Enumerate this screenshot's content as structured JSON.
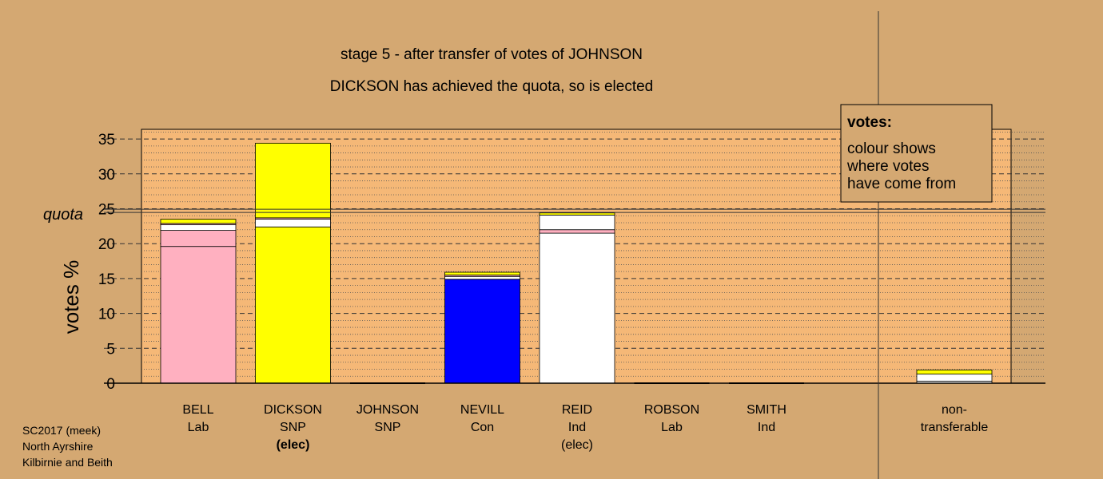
{
  "titles": {
    "line1": "stage 5 - after transfer of votes of JOHNSON",
    "line2": "DICKSON has achieved the quota, so is elected"
  },
  "footer": {
    "line1": "SC2017 (meek)",
    "line2": "North Ayrshire",
    "line3": "Kilbirnie and Beith"
  },
  "legend": {
    "heading": "votes:",
    "line1": "colour shows",
    "line2": "where votes",
    "line3": "have come from"
  },
  "colors": {
    "background": "#d4a872",
    "plot_area": "#f5b877",
    "Lab": "#ffb0c0",
    "SNP": "#ffff00",
    "Con": "#0000ff",
    "Ind": "#ffffff"
  },
  "chart_data": {
    "type": "bar",
    "stacked": true,
    "ylabel": "votes %",
    "ylim": [
      0,
      36
    ],
    "yticks": [
      0,
      5,
      10,
      15,
      20,
      25,
      30,
      35
    ],
    "grid": "dashed major, dotted minor",
    "quota": {
      "label": "quota",
      "value": 24.7
    },
    "candidates": [
      {
        "name": "BELL",
        "party": "Lab",
        "status": "",
        "segments": [
          {
            "source": "Lab",
            "value": 19.6
          },
          {
            "source": "Lab",
            "value": 2.3
          },
          {
            "source": "Ind",
            "value": 0.8
          },
          {
            "source": "Lab",
            "value": 0.2
          },
          {
            "source": "SNP",
            "value": 0.6
          }
        ]
      },
      {
        "name": "DICKSON",
        "party": "SNP",
        "status": "(elec)",
        "segments": [
          {
            "source": "SNP",
            "value": 22.4
          },
          {
            "source": "Ind",
            "value": 1.1
          },
          {
            "source": "Lab",
            "value": 0.2
          },
          {
            "source": "SNP",
            "value": 10.7
          }
        ]
      },
      {
        "name": "JOHNSON",
        "party": "SNP",
        "status": "",
        "segments": []
      },
      {
        "name": "NEVILL",
        "party": "Con",
        "status": "",
        "segments": [
          {
            "source": "Con",
            "value": 14.9
          },
          {
            "source": "Ind",
            "value": 0.4
          },
          {
            "source": "Lab",
            "value": 0.2
          },
          {
            "source": "SNP",
            "value": 0.4
          }
        ]
      },
      {
        "name": "REID",
        "party": "Ind",
        "status": "(elec)",
        "segments": [
          {
            "source": "Ind",
            "value": 21.5
          },
          {
            "source": "Lab",
            "value": 0.5
          },
          {
            "source": "Ind",
            "value": 2.1
          },
          {
            "source": "SNP",
            "value": 0.3
          }
        ]
      },
      {
        "name": "ROBSON",
        "party": "Lab",
        "status": "",
        "segments": []
      },
      {
        "name": "SMITH",
        "party": "Ind",
        "status": "",
        "segments": []
      }
    ],
    "nontransferable": {
      "label1": "non-",
      "label2": "transferable",
      "segments": [
        {
          "source": "Ind",
          "value": 0.3
        },
        {
          "source": "Ind",
          "value": 1.0
        },
        {
          "source": "SNP",
          "value": 0.6
        }
      ]
    }
  }
}
